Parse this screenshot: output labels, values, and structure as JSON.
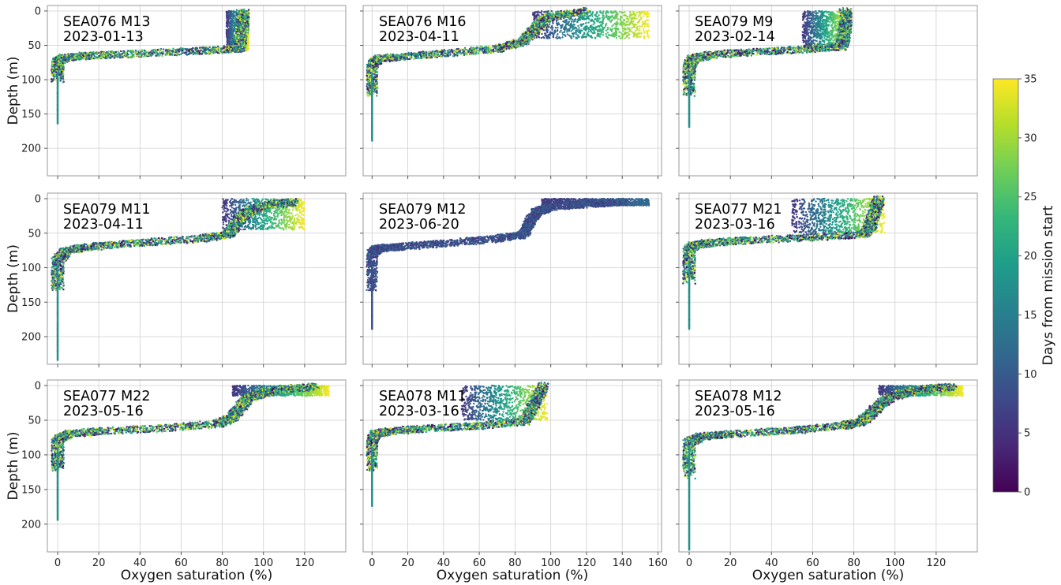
{
  "colorbar": {
    "label": "Days from mission start",
    "range": [
      0,
      35
    ],
    "ticks": [
      0,
      5,
      10,
      15,
      20,
      25,
      30,
      35
    ],
    "colormap": [
      "#440154",
      "#482878",
      "#3e4989",
      "#31688e",
      "#26828e",
      "#1f9e89",
      "#35b779",
      "#6ece58",
      "#b5de2b",
      "#fde725"
    ]
  },
  "chart_data": [
    {
      "type": "scatter",
      "glider": "SEA076 M13",
      "date": "2023-01-13",
      "xlim": [
        -5,
        140
      ],
      "ylim": [
        240,
        -8
      ],
      "xticks": [],
      "yticks": [
        0,
        50,
        100,
        150,
        200
      ],
      "xlabel": "",
      "ylabel": "Depth (m)",
      "surface": {
        "x": [
          82,
          93
        ],
        "depth": [
          0,
          58
        ]
      },
      "profile": [
        [
          90,
          0
        ],
        [
          90,
          20
        ],
        [
          89,
          40
        ],
        [
          88,
          55
        ],
        [
          70,
          58
        ],
        [
          40,
          62
        ],
        [
          15,
          65
        ],
        [
          3,
          68
        ],
        [
          0,
          75
        ],
        [
          0,
          100
        ],
        [
          0,
          160
        ]
      ],
      "bottom": 165,
      "days": [
        0,
        35
      ]
    },
    {
      "type": "scatter",
      "glider": "SEA076 M16",
      "date": "2023-04-11",
      "xlim": [
        -5,
        162
      ],
      "ylim": [
        240,
        -8
      ],
      "xticks": [],
      "yticks": [],
      "xlabel": "",
      "ylabel": "",
      "surface": {
        "x": [
          90,
          155
        ],
        "depth": [
          0,
          40
        ]
      },
      "profile": [
        [
          120,
          0
        ],
        [
          100,
          8
        ],
        [
          95,
          15
        ],
        [
          92,
          25
        ],
        [
          88,
          35
        ],
        [
          84,
          45
        ],
        [
          70,
          55
        ],
        [
          40,
          62
        ],
        [
          15,
          67
        ],
        [
          3,
          70
        ],
        [
          0,
          80
        ],
        [
          0,
          120
        ],
        [
          0,
          185
        ]
      ],
      "bottom": 190,
      "days": [
        0,
        35
      ]
    },
    {
      "type": "scatter",
      "glider": "SEA079 M9",
      "date": "2023-02-14",
      "xlim": [
        -5,
        140
      ],
      "ylim": [
        240,
        -8
      ],
      "xticks": [],
      "yticks": [],
      "xlabel": "",
      "ylabel": "",
      "surface": {
        "x": [
          55,
          77
        ],
        "depth": [
          0,
          52
        ]
      },
      "profile": [
        [
          76,
          0
        ],
        [
          76,
          20
        ],
        [
          75,
          40
        ],
        [
          74,
          52
        ],
        [
          55,
          56
        ],
        [
          30,
          60
        ],
        [
          10,
          64
        ],
        [
          2,
          70
        ],
        [
          0,
          80
        ],
        [
          0,
          120
        ],
        [
          0,
          165
        ]
      ],
      "bottom": 170,
      "days": [
        0,
        35
      ]
    },
    {
      "type": "scatter",
      "glider": "SEA079 M11",
      "date": "2023-04-11",
      "xlim": [
        -5,
        140
      ],
      "ylim": [
        240,
        -8
      ],
      "xticks": [],
      "yticks": [
        0,
        50,
        100,
        150,
        200
      ],
      "xlabel": "",
      "ylabel": "Depth (m)",
      "surface": {
        "x": [
          80,
          120
        ],
        "depth": [
          0,
          45
        ]
      },
      "profile": [
        [
          115,
          5
        ],
        [
          105,
          8
        ],
        [
          95,
          15
        ],
        [
          90,
          25
        ],
        [
          86,
          40
        ],
        [
          83,
          52
        ],
        [
          70,
          58
        ],
        [
          40,
          64
        ],
        [
          15,
          70
        ],
        [
          4,
          76
        ],
        [
          0,
          90
        ],
        [
          0,
          130
        ],
        [
          0,
          230
        ]
      ],
      "bottom": 235,
      "days": [
        0,
        35
      ]
    },
    {
      "type": "scatter",
      "glider": "SEA079 M12",
      "date": "2023-06-20",
      "xlim": [
        -5,
        162
      ],
      "ylim": [
        240,
        -8
      ],
      "xticks": [],
      "yticks": [],
      "xlabel": "",
      "ylabel": "",
      "surface": {
        "x": [
          95,
          155
        ],
        "depth": [
          0,
          10
        ]
      },
      "profile": [
        [
          140,
          5
        ],
        [
          120,
          8
        ],
        [
          100,
          12
        ],
        [
          92,
          20
        ],
        [
          88,
          35
        ],
        [
          85,
          52
        ],
        [
          70,
          58
        ],
        [
          40,
          65
        ],
        [
          15,
          70
        ],
        [
          3,
          72
        ],
        [
          0,
          80
        ],
        [
          0,
          130
        ],
        [
          0,
          188
        ]
      ],
      "bottom": 190,
      "days": [
        5,
        12
      ]
    },
    {
      "type": "scatter",
      "glider": "SEA077 M21",
      "date": "2023-03-16",
      "xlim": [
        -5,
        140
      ],
      "ylim": [
        240,
        -8
      ],
      "xticks": [],
      "yticks": [],
      "xlabel": "",
      "ylabel": "",
      "surface": {
        "x": [
          50,
          95
        ],
        "depth": [
          0,
          50
        ]
      },
      "profile": [
        [
          92,
          0
        ],
        [
          90,
          20
        ],
        [
          88,
          40
        ],
        [
          85,
          52
        ],
        [
          60,
          56
        ],
        [
          30,
          60
        ],
        [
          10,
          64
        ],
        [
          2,
          68
        ],
        [
          0,
          75
        ],
        [
          0,
          120
        ],
        [
          0,
          185
        ]
      ],
      "bottom": 190,
      "days": [
        0,
        35
      ]
    },
    {
      "type": "scatter",
      "glider": "SEA077 M22",
      "date": "2023-05-16",
      "xlim": [
        -5,
        140
      ],
      "ylim": [
        240,
        -8
      ],
      "xticks": [
        0,
        20,
        40,
        60,
        80,
        100,
        120
      ],
      "yticks": [
        0,
        50,
        100,
        150,
        200
      ],
      "xlabel": "Oxygen saturation (%)",
      "ylabel": "Depth (m)",
      "surface": {
        "x": [
          85,
          132
        ],
        "depth": [
          0,
          15
        ]
      },
      "profile": [
        [
          125,
          2
        ],
        [
          110,
          5
        ],
        [
          100,
          10
        ],
        [
          92,
          20
        ],
        [
          88,
          35
        ],
        [
          84,
          48
        ],
        [
          78,
          55
        ],
        [
          50,
          62
        ],
        [
          20,
          66
        ],
        [
          5,
          70
        ],
        [
          0,
          80
        ],
        [
          0,
          120
        ],
        [
          0,
          188
        ]
      ],
      "bottom": 195,
      "days": [
        0,
        35
      ]
    },
    {
      "type": "scatter",
      "glider": "SEA078 M11",
      "date": "2023-03-16",
      "xlim": [
        -5,
        162
      ],
      "ylim": [
        240,
        -8
      ],
      "xticks": [
        0,
        20,
        40,
        60,
        80,
        100,
        120,
        140,
        160
      ],
      "yticks": [],
      "xlabel": "Oxygen saturation (%)",
      "ylabel": "",
      "surface": {
        "x": [
          50,
          98
        ],
        "depth": [
          0,
          50
        ]
      },
      "profile": [
        [
          96,
          0
        ],
        [
          92,
          20
        ],
        [
          88,
          40
        ],
        [
          85,
          52
        ],
        [
          60,
          58
        ],
        [
          30,
          62
        ],
        [
          10,
          66
        ],
        [
          2,
          70
        ],
        [
          0,
          80
        ],
        [
          0,
          120
        ],
        [
          0,
          170
        ]
      ],
      "bottom": 175,
      "days": [
        0,
        35
      ]
    },
    {
      "type": "scatter",
      "glider": "SEA078 M12",
      "date": "2023-05-16",
      "xlim": [
        -5,
        140
      ],
      "ylim": [
        240,
        -8
      ],
      "xticks": [
        0,
        20,
        40,
        60,
        80,
        100,
        120
      ],
      "yticks": [],
      "xlabel": "Oxygen saturation (%)",
      "ylabel": "",
      "surface": {
        "x": [
          92,
          133
        ],
        "depth": [
          0,
          15
        ]
      },
      "profile": [
        [
          128,
          2
        ],
        [
          115,
          5
        ],
        [
          105,
          10
        ],
        [
          96,
          20
        ],
        [
          92,
          30
        ],
        [
          88,
          42
        ],
        [
          84,
          52
        ],
        [
          75,
          58
        ],
        [
          50,
          65
        ],
        [
          20,
          70
        ],
        [
          5,
          74
        ],
        [
          0,
          82
        ],
        [
          0,
          130
        ],
        [
          0,
          235
        ]
      ],
      "bottom": 238,
      "days": [
        0,
        35
      ]
    }
  ]
}
